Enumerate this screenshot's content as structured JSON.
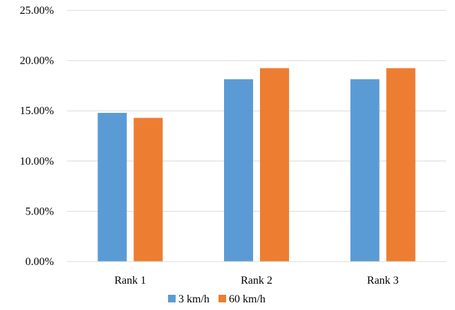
{
  "chart_data": {
    "type": "bar",
    "categories": [
      "Rank 1",
      "Rank 2",
      "Rank 3"
    ],
    "series": [
      {
        "name": "3 km/h",
        "values": [
          14.8,
          18.15,
          18.15
        ],
        "color": "#5B9BD5"
      },
      {
        "name": "60 km/h",
        "values": [
          14.3,
          19.25,
          19.25
        ],
        "color": "#ED7D31"
      }
    ],
    "ylim": [
      0,
      25
    ],
    "yticks": [
      0,
      5,
      10,
      15,
      20,
      25
    ],
    "ytick_labels": [
      "0.00%",
      "5.00%",
      "10.00%",
      "15.00%",
      "20.00%",
      "25.00%"
    ],
    "grid": true,
    "legend_position": "bottom"
  }
}
